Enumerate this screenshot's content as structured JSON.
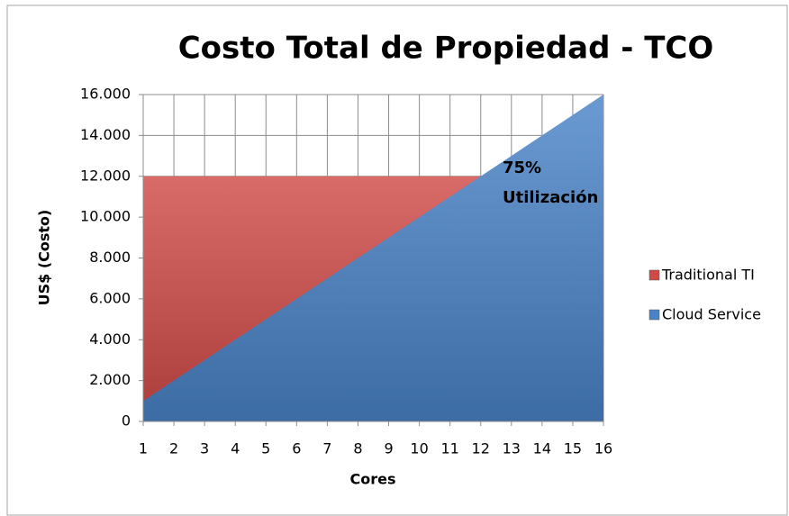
{
  "chart_data": {
    "type": "area",
    "title": "Costo Total de Propiedad - TCO",
    "x_label": "Cores",
    "y_label": "US$ (Costo)",
    "annotation": [
      "75%",
      "Utilización"
    ],
    "x": [
      1,
      2,
      3,
      4,
      5,
      6,
      7,
      8,
      9,
      10,
      11,
      12,
      13,
      14,
      15,
      16
    ],
    "xlim": [
      1,
      16
    ],
    "xticks": [
      1,
      2,
      3,
      4,
      5,
      6,
      7,
      8,
      9,
      10,
      11,
      12,
      13,
      14,
      15,
      16
    ],
    "ylim": [
      0,
      16000
    ],
    "yticks": [
      0,
      {
        "value": 2000,
        "label": "2.000"
      },
      {
        "value": 4000,
        "label": "4.000"
      },
      {
        "value": 6000,
        "label": "6.000"
      },
      {
        "value": 8000,
        "label": "8.000"
      },
      {
        "value": 10000,
        "label": "10.000"
      },
      {
        "value": 12000,
        "label": "12.000"
      },
      {
        "value": 14000,
        "label": "14.000"
      },
      {
        "value": 16000,
        "label": "16.000"
      }
    ],
    "grid": true,
    "legend": "right",
    "series": [
      {
        "name": "Traditional TI",
        "color": "#d04a47",
        "values": [
          12000,
          12000,
          12000,
          12000,
          12000,
          12000,
          12000,
          12000,
          12000,
          12000,
          12000,
          12000,
          12000,
          12000,
          12000,
          12000
        ]
      },
      {
        "name": "Cloud Service",
        "color": "#4a84c8",
        "values": [
          1000,
          2000,
          3000,
          4000,
          5000,
          6000,
          7000,
          8000,
          9000,
          10000,
          11000,
          12000,
          13000,
          14000,
          15000,
          16000
        ]
      }
    ]
  }
}
